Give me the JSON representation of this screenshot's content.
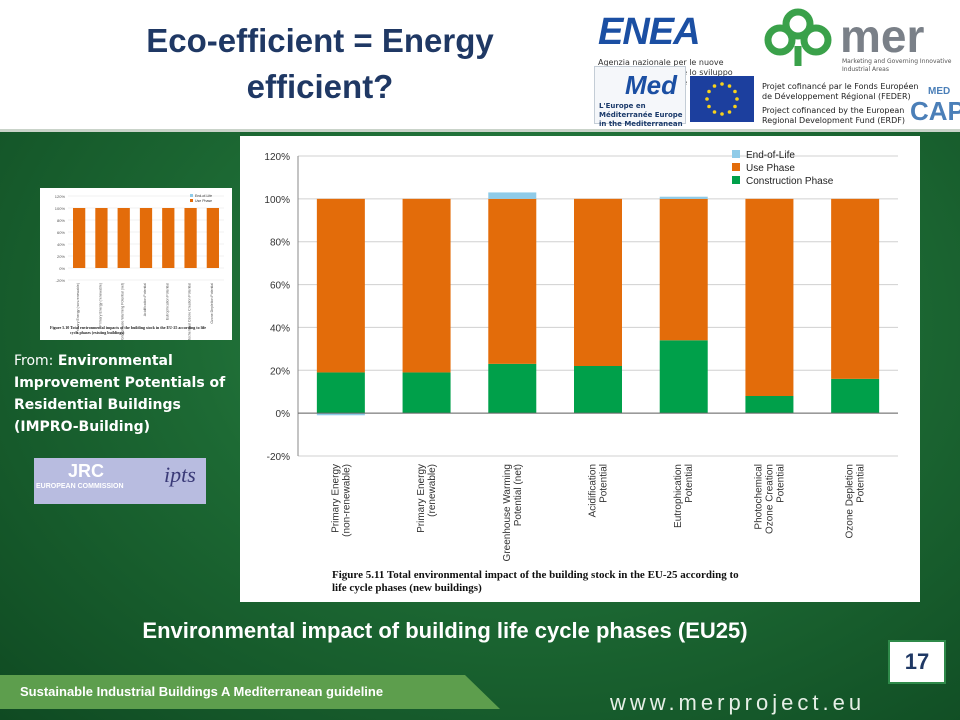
{
  "title": "Eco-efficient = Energy efficient?",
  "logos": {
    "enea": "ENEA",
    "enea_sub": "Agenzia nazionale per le nuove tecnologie, l'energia e lo sviluppo economico sostenibile",
    "mer": "mer",
    "mer_tagline": "Marketing and Governing Innovative Industrial Areas",
    "med": "Med",
    "med_sub": "L'Europe en Méditerranée Europe in the Mediterranean",
    "fund_fr": "Projet cofinancé par le Fonds Européen de Développement Régional (FEDER)",
    "fund_en": "Project cofinanced by the European Regional Development Fund (ERDF)",
    "medcap_top": "MED",
    "medcap": "CAP",
    "jrc": "JRC",
    "jrc_sub": "EUROPEAN COMMISSION",
    "ipts": "ipts"
  },
  "source": {
    "prefix": "From: ",
    "text": "Environmental Improvement Potentials of Residential Buildings (IMPRO-Building)"
  },
  "subtitle": "Environmental impact of building life cycle phases (EU25)",
  "page_number": "17",
  "footer": "Sustainable Industrial Buildings  A Mediterranean guideline",
  "url": "www.merproject.eu",
  "colors": {
    "end_of_life": "#8fcbe8",
    "use_phase": "#e36c0a",
    "construction": "#00a04a"
  },
  "chart_data": {
    "type": "bar",
    "stacked": true,
    "categories": [
      "Primary Energy (non-renewable)",
      "Primary Energy (renewable)",
      "Greenhouse Warming Potential (net)",
      "Acidification Potential",
      "Eutrophication Potential",
      "Photochemical Ozone Creation Potential",
      "Ozone Depletion Potential"
    ],
    "series": [
      {
        "name": "End-of-Life",
        "values": [
          -1,
          0,
          3,
          0,
          1,
          0,
          0
        ]
      },
      {
        "name": "Use Phase",
        "values": [
          81,
          81,
          77,
          78,
          66,
          92,
          84
        ]
      },
      {
        "name": "Construction Phase",
        "values": [
          19,
          19,
          23,
          22,
          34,
          8,
          16
        ]
      }
    ],
    "ylim": [
      -20,
      120
    ],
    "yticks": [
      -20,
      0,
      20,
      40,
      60,
      80,
      100,
      120
    ],
    "ytick_labels": [
      "-20%",
      "0%",
      "20%",
      "40%",
      "60%",
      "80%",
      "100%",
      "120%"
    ],
    "grid": true,
    "legend_position": "top-right",
    "caption_label": "Figure 5.11",
    "caption": "Total environmental impact of the building stock in the EU-25 according to life cycle phases (new buildings)",
    "thumb_caption_label": "Figure 5.10",
    "thumb_caption": "Total environmental impacts of the building stock in the EU-25 according to life cycle phases (existing buildings)"
  }
}
